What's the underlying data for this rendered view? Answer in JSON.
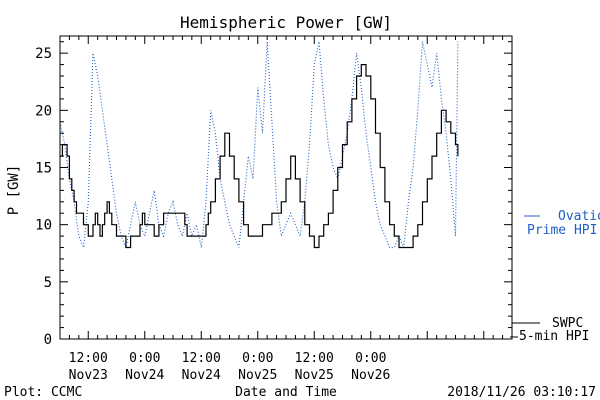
{
  "chart_data": {
    "type": "line",
    "title": "Hemispheric Power [GW]",
    "ylabel": "P [GW]",
    "xlabel": "Date and Time",
    "ylim": [
      0,
      26.5
    ],
    "xlim": [
      "2018-11-22T06:00",
      "2018-11-26T06:00"
    ],
    "yticks": [
      0,
      5,
      10,
      15,
      20,
      25
    ],
    "xticks": [
      {
        "time": "2018-11-22T12:00",
        "line1": "12:00",
        "line2": "Nov23"
      },
      {
        "time": "2018-11-23T00:00",
        "line1": "0:00",
        "line2": "Nov24"
      },
      {
        "time": "2018-11-23T12:00",
        "line1": "12:00",
        "line2": "Nov24"
      },
      {
        "time": "2018-11-24T00:00",
        "line1": "0:00",
        "line2": "Nov25"
      },
      {
        "time": "2018-11-24T12:00",
        "line1": "12:00",
        "line2": "Nov25"
      },
      {
        "time": "2018-11-25T00:00",
        "line1": "0:00",
        "line2": "Nov26"
      }
    ],
    "series": [
      {
        "name_lines": [
          "SWPC",
          "5-min HPI"
        ],
        "color": "#000000",
        "style": "solid",
        "points": [
          [
            "2018-11-22T06:00",
            16
          ],
          [
            "2018-11-22T06:30",
            17
          ],
          [
            "2018-11-22T07:10",
            17
          ],
          [
            "2018-11-22T07:30",
            16
          ],
          [
            "2018-11-22T08:00",
            14
          ],
          [
            "2018-11-22T08:30",
            13
          ],
          [
            "2018-11-22T09:00",
            12
          ],
          [
            "2018-11-22T09:30",
            11
          ],
          [
            "2018-11-22T10:30",
            11
          ],
          [
            "2018-11-22T11:00",
            10
          ],
          [
            "2018-11-22T11:30",
            10
          ],
          [
            "2018-11-22T12:00",
            9
          ],
          [
            "2018-11-22T13:00",
            10
          ],
          [
            "2018-11-22T13:30",
            11
          ],
          [
            "2018-11-22T14:00",
            10
          ],
          [
            "2018-11-22T14:30",
            9
          ],
          [
            "2018-11-22T15:00",
            10
          ],
          [
            "2018-11-22T15:30",
            11
          ],
          [
            "2018-11-22T16:00",
            12
          ],
          [
            "2018-11-22T16:30",
            11
          ],
          [
            "2018-11-22T17:00",
            10
          ],
          [
            "2018-11-22T18:00",
            9
          ],
          [
            "2018-11-22T19:00",
            9
          ],
          [
            "2018-11-22T20:00",
            8
          ],
          [
            "2018-11-22T21:00",
            9
          ],
          [
            "2018-11-22T22:00",
            9
          ],
          [
            "2018-11-22T23:00",
            10
          ],
          [
            "2018-11-22T23:30",
            11
          ],
          [
            "2018-11-23T00:00",
            10
          ],
          [
            "2018-11-23T01:00",
            10
          ],
          [
            "2018-11-23T02:00",
            9
          ],
          [
            "2018-11-23T03:00",
            10
          ],
          [
            "2018-11-23T04:00",
            11
          ],
          [
            "2018-11-23T05:00",
            11
          ],
          [
            "2018-11-23T06:00",
            11
          ],
          [
            "2018-11-23T07:00",
            11
          ],
          [
            "2018-11-23T08:00",
            11
          ],
          [
            "2018-11-23T08:30",
            10
          ],
          [
            "2018-11-23T09:00",
            9
          ],
          [
            "2018-11-23T12:00",
            9
          ],
          [
            "2018-11-23T13:00",
            10
          ],
          [
            "2018-11-23T13:30",
            11
          ],
          [
            "2018-11-23T14:00",
            12
          ],
          [
            "2018-11-23T15:00",
            14
          ],
          [
            "2018-11-23T16:00",
            16
          ],
          [
            "2018-11-23T17:00",
            18
          ],
          [
            "2018-11-23T18:00",
            16
          ],
          [
            "2018-11-23T19:00",
            14
          ],
          [
            "2018-11-23T20:00",
            12
          ],
          [
            "2018-11-23T21:00",
            10
          ],
          [
            "2018-11-23T22:00",
            9
          ],
          [
            "2018-11-24T00:00",
            9
          ],
          [
            "2018-11-24T01:00",
            10
          ],
          [
            "2018-11-24T02:00",
            10
          ],
          [
            "2018-11-24T03:00",
            11
          ],
          [
            "2018-11-24T04:00",
            11
          ],
          [
            "2018-11-24T05:00",
            12
          ],
          [
            "2018-11-24T06:00",
            14
          ],
          [
            "2018-11-24T07:00",
            16
          ],
          [
            "2018-11-24T08:00",
            14
          ],
          [
            "2018-11-24T09:00",
            12
          ],
          [
            "2018-11-24T10:00",
            10
          ],
          [
            "2018-11-24T11:00",
            9
          ],
          [
            "2018-11-24T12:00",
            8
          ],
          [
            "2018-11-24T13:00",
            9
          ],
          [
            "2018-11-24T14:00",
            10
          ],
          [
            "2018-11-24T15:00",
            11
          ],
          [
            "2018-11-24T16:00",
            13
          ],
          [
            "2018-11-24T17:00",
            15
          ],
          [
            "2018-11-24T18:00",
            17
          ],
          [
            "2018-11-24T19:00",
            19
          ],
          [
            "2018-11-24T20:00",
            21
          ],
          [
            "2018-11-24T21:00",
            23
          ],
          [
            "2018-11-24T22:00",
            24
          ],
          [
            "2018-11-24T23:00",
            23
          ],
          [
            "2018-11-25T00:00",
            21
          ],
          [
            "2018-11-25T01:00",
            18
          ],
          [
            "2018-11-25T02:00",
            15
          ],
          [
            "2018-11-25T03:00",
            12
          ],
          [
            "2018-11-25T04:00",
            10
          ],
          [
            "2018-11-25T05:00",
            9
          ],
          [
            "2018-11-25T06:00",
            8
          ],
          [
            "2018-11-25T08:00",
            8
          ],
          [
            "2018-11-25T09:00",
            9
          ],
          [
            "2018-11-25T10:00",
            10
          ],
          [
            "2018-11-25T11:00",
            12
          ],
          [
            "2018-11-25T12:00",
            14
          ],
          [
            "2018-11-25T13:00",
            16
          ],
          [
            "2018-11-25T14:00",
            18
          ],
          [
            "2018-11-25T15:00",
            20
          ],
          [
            "2018-11-25T16:00",
            19
          ],
          [
            "2018-11-25T17:00",
            18
          ],
          [
            "2018-11-25T18:00",
            17
          ],
          [
            "2018-11-25T18:30",
            16
          ]
        ]
      },
      {
        "name_lines": [
          "Ovation",
          "Prime HPI"
        ],
        "color": "#1f5fc6",
        "style": "dotted",
        "points": [
          [
            "2018-11-22T06:00",
            19
          ],
          [
            "2018-11-22T07:00",
            17
          ],
          [
            "2018-11-22T08:00",
            14
          ],
          [
            "2018-11-22T09:00",
            12
          ],
          [
            "2018-11-22T10:00",
            9
          ],
          [
            "2018-11-22T11:00",
            8
          ],
          [
            "2018-11-22T12:00",
            12
          ],
          [
            "2018-11-22T13:00",
            25
          ],
          [
            "2018-11-22T14:00",
            23
          ],
          [
            "2018-11-22T15:00",
            20
          ],
          [
            "2018-11-22T16:00",
            17
          ],
          [
            "2018-11-22T17:00",
            14
          ],
          [
            "2018-11-22T18:00",
            11
          ],
          [
            "2018-11-22T19:00",
            9
          ],
          [
            "2018-11-22T20:00",
            8
          ],
          [
            "2018-11-22T21:00",
            10
          ],
          [
            "2018-11-22T22:00",
            12
          ],
          [
            "2018-11-22T23:00",
            10
          ],
          [
            "2018-11-23T00:00",
            9
          ],
          [
            "2018-11-23T01:00",
            11
          ],
          [
            "2018-11-23T02:00",
            13
          ],
          [
            "2018-11-23T03:00",
            10
          ],
          [
            "2018-11-23T04:00",
            9
          ],
          [
            "2018-11-23T05:00",
            11
          ],
          [
            "2018-11-23T06:00",
            12
          ],
          [
            "2018-11-23T07:00",
            10
          ],
          [
            "2018-11-23T08:00",
            9
          ],
          [
            "2018-11-23T09:00",
            11
          ],
          [
            "2018-11-23T10:00",
            9
          ],
          [
            "2018-11-23T11:00",
            10
          ],
          [
            "2018-11-23T12:00",
            8
          ],
          [
            "2018-11-23T13:00",
            12
          ],
          [
            "2018-11-23T14:00",
            20
          ],
          [
            "2018-11-23T15:00",
            18
          ],
          [
            "2018-11-23T16:00",
            14
          ],
          [
            "2018-11-23T17:00",
            12
          ],
          [
            "2018-11-23T18:00",
            10
          ],
          [
            "2018-11-23T19:00",
            9
          ],
          [
            "2018-11-23T20:00",
            8
          ],
          [
            "2018-11-23T21:00",
            12
          ],
          [
            "2018-11-23T22:00",
            16
          ],
          [
            "2018-11-23T23:00",
            14
          ],
          [
            "2018-11-24T00:00",
            22
          ],
          [
            "2018-11-24T01:00",
            18
          ],
          [
            "2018-11-24T02:00",
            26
          ],
          [
            "2018-11-24T03:00",
            19
          ],
          [
            "2018-11-24T04:00",
            12
          ],
          [
            "2018-11-24T05:00",
            9
          ],
          [
            "2018-11-24T06:00",
            10
          ],
          [
            "2018-11-24T07:00",
            11
          ],
          [
            "2018-11-24T08:00",
            10
          ],
          [
            "2018-11-24T09:00",
            9
          ],
          [
            "2018-11-24T10:00",
            12
          ],
          [
            "2018-11-24T11:00",
            17
          ],
          [
            "2018-11-24T12:00",
            24
          ],
          [
            "2018-11-24T13:00",
            26
          ],
          [
            "2018-11-24T14:00",
            21
          ],
          [
            "2018-11-24T15:00",
            17
          ],
          [
            "2018-11-24T16:00",
            15
          ],
          [
            "2018-11-24T17:00",
            14
          ],
          [
            "2018-11-24T18:00",
            16
          ],
          [
            "2018-11-24T19:00",
            18
          ],
          [
            "2018-11-24T20:00",
            21
          ],
          [
            "2018-11-24T21:00",
            25
          ],
          [
            "2018-11-24T22:00",
            22
          ],
          [
            "2018-11-24T23:00",
            18
          ],
          [
            "2018-11-25T00:00",
            15
          ],
          [
            "2018-11-25T01:00",
            12
          ],
          [
            "2018-11-25T02:00",
            10
          ],
          [
            "2018-11-25T03:00",
            9
          ],
          [
            "2018-11-25T04:00",
            8
          ],
          [
            "2018-11-25T05:00",
            8
          ],
          [
            "2018-11-25T06:00",
            9
          ],
          [
            "2018-11-25T07:00",
            8
          ],
          [
            "2018-11-25T08:00",
            12
          ],
          [
            "2018-11-25T09:00",
            15
          ],
          [
            "2018-11-25T10:00",
            20
          ],
          [
            "2018-11-25T11:00",
            26
          ],
          [
            "2018-11-25T12:00",
            24
          ],
          [
            "2018-11-25T13:00",
            22
          ],
          [
            "2018-11-25T14:00",
            25
          ],
          [
            "2018-11-25T15:00",
            21
          ],
          [
            "2018-11-25T16:00",
            18
          ],
          [
            "2018-11-25T17:00",
            14
          ],
          [
            "2018-11-25T18:00",
            9
          ],
          [
            "2018-11-25T18:30",
            26
          ]
        ]
      }
    ]
  },
  "footer": {
    "left": "Plot: CCMC",
    "right": "2018/11/26 03:10:17"
  }
}
